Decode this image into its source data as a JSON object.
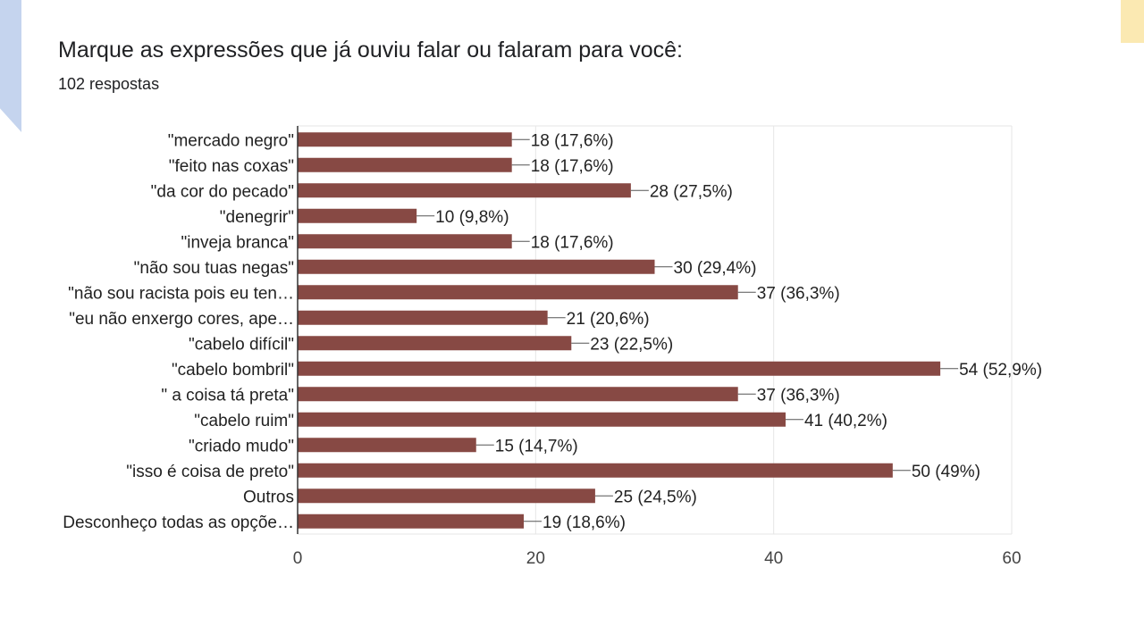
{
  "title": "Marque as expressões que já ouviu falar ou falaram para você:",
  "subtitle": "102 respostas",
  "colors": {
    "bar": "#874944",
    "grid": "#e6e6e6",
    "axis": "#333333",
    "text": "#222222"
  },
  "chart_data": {
    "type": "bar",
    "orientation": "horizontal",
    "categories": [
      "\"mercado negro\"",
      "\"feito nas coxas\"",
      "\"da cor do pecado\"",
      "\"denegrir\"",
      "\"inveja branca\"",
      "\"não sou tuas negas\"",
      "\"não sou racista pois eu ten…",
      "\"eu não enxergo cores, ape…",
      "\"cabelo difícil\"",
      "\"cabelo bombril\"",
      "\" a coisa tá preta\"",
      "\"cabelo ruim\"",
      "\"criado mudo\"",
      "\"isso é coisa de preto\"",
      "Outros",
      "Desconheço todas as opçõe…"
    ],
    "values": [
      18,
      18,
      28,
      10,
      18,
      30,
      37,
      21,
      23,
      54,
      37,
      41,
      15,
      50,
      25,
      19
    ],
    "data_labels": [
      "18 (17,6%)",
      "18 (17,6%)",
      "28 (27,5%)",
      "10 (9,8%)",
      "18 (17,6%)",
      "30 (29,4%)",
      "37 (36,3%)",
      "21 (20,6%)",
      "23 (22,5%)",
      "54 (52,9%)",
      "37 (36,3%)",
      "41 (40,2%)",
      "15 (14,7%)",
      "50 (49%)",
      "25 (24,5%)",
      "19 (18,6%)"
    ],
    "xlim": [
      0,
      60
    ],
    "xticks": [
      0,
      20,
      40,
      60
    ],
    "grid": true,
    "legend": "none"
  }
}
